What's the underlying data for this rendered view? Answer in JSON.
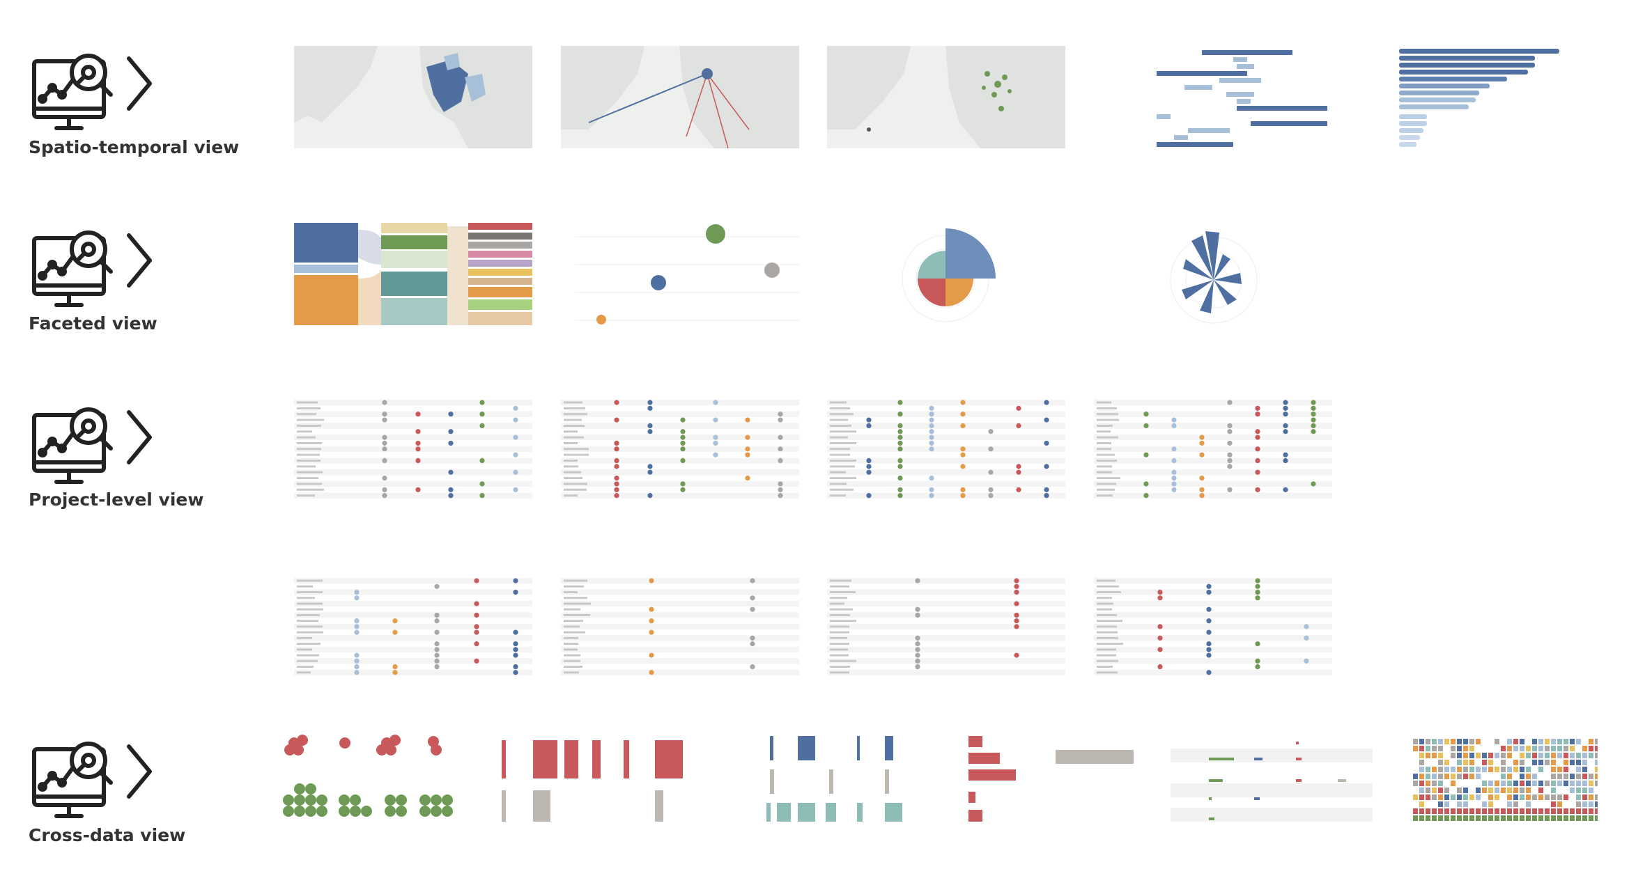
{
  "rows": [
    {
      "label": "Spatio-temporal view"
    },
    {
      "label": "Faceted view"
    },
    {
      "label": "Project-level view"
    },
    {
      "label": ""
    },
    {
      "label": "Cross-data view"
    }
  ],
  "icon": "monitor-analytics-magnifier-chevron-icon",
  "colors": {
    "blue": "#4e6f9f",
    "light_blue": "#a8bfd9",
    "orange": "#e39a49",
    "red": "#c9585a",
    "green": "#6e9a56",
    "gray": "#a9a6a3",
    "teal": "#8ebcb7",
    "map_land": "#e6e8e6"
  }
}
